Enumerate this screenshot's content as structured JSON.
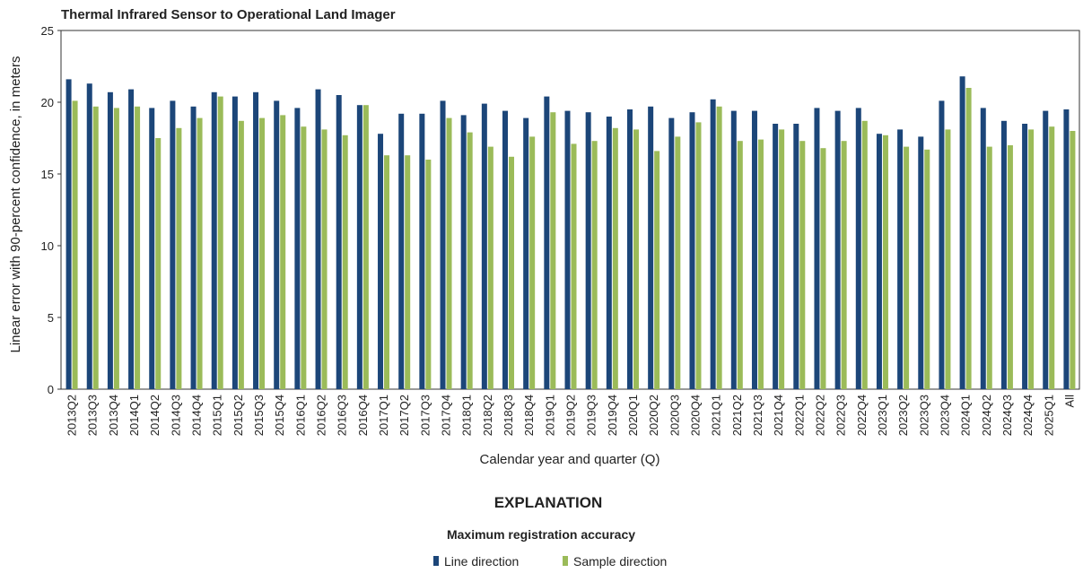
{
  "chart_data": {
    "type": "bar",
    "title": "Thermal Infrared Sensor to Operational Land Imager",
    "y_label": "Linear error with 90-percent confidence, in meters",
    "x_label": "Calendar year and quarter (Q)",
    "legend_title": "EXPLANATION",
    "legend_subtitle": "Maximum registration accuracy",
    "categories": [
      "2013Q2",
      "2013Q3",
      "2013Q4",
      "2014Q1",
      "2014Q2",
      "2014Q3",
      "2014Q4",
      "2015Q1",
      "2015Q2",
      "2015Q3",
      "2015Q4",
      "2016Q1",
      "2016Q2",
      "2016Q3",
      "2016Q4",
      "2017Q1",
      "2017Q2",
      "2017Q3",
      "2017Q4",
      "2018Q1",
      "2018Q2",
      "2018Q3",
      "2018Q4",
      "2019Q1",
      "2019Q2",
      "2019Q3",
      "2019Q4",
      "2020Q1",
      "2020Q2",
      "2020Q3",
      "2020Q4",
      "2021Q1",
      "2021Q2",
      "2021Q3",
      "2021Q4",
      "2022Q1",
      "2022Q2",
      "2022Q3",
      "2022Q4",
      "2023Q1",
      "2023Q2",
      "2023Q3",
      "2023Q4",
      "2024Q1",
      "2024Q2",
      "2024Q3",
      "2024Q4",
      "2025Q1",
      "All"
    ],
    "series": [
      {
        "name": "Line direction",
        "color": "#1c4679",
        "values": [
          21.6,
          21.3,
          20.7,
          20.9,
          19.6,
          20.1,
          19.7,
          20.7,
          20.4,
          20.7,
          20.1,
          19.6,
          20.9,
          20.5,
          19.8,
          17.8,
          19.2,
          19.2,
          20.1,
          19.1,
          19.9,
          19.4,
          18.9,
          20.4,
          19.4,
          19.3,
          19.0,
          19.5,
          19.7,
          18.9,
          19.3,
          20.2,
          19.4,
          19.4,
          18.5,
          18.5,
          19.6,
          19.4,
          19.6,
          17.8,
          18.1,
          17.6,
          20.1,
          21.8,
          19.6,
          18.7,
          18.5,
          19.4,
          19.5
        ]
      },
      {
        "name": "Sample direction",
        "color": "#9bbb59",
        "values": [
          20.1,
          19.7,
          19.6,
          19.7,
          17.5,
          18.2,
          18.9,
          20.4,
          18.7,
          18.9,
          19.1,
          18.3,
          18.1,
          17.7,
          19.8,
          16.3,
          16.3,
          16.0,
          18.9,
          17.9,
          16.9,
          16.2,
          17.6,
          19.3,
          17.1,
          17.3,
          18.2,
          18.1,
          16.6,
          17.6,
          18.6,
          19.7,
          17.3,
          17.4,
          18.1,
          17.3,
          16.8,
          17.3,
          18.7,
          17.7,
          16.9,
          16.7,
          18.1,
          21.0,
          16.9,
          17.0,
          18.1,
          18.3,
          18.0
        ]
      }
    ],
    "ylim": [
      0,
      25
    ],
    "yticks": [
      0,
      5,
      10,
      15,
      20,
      25
    ]
  }
}
